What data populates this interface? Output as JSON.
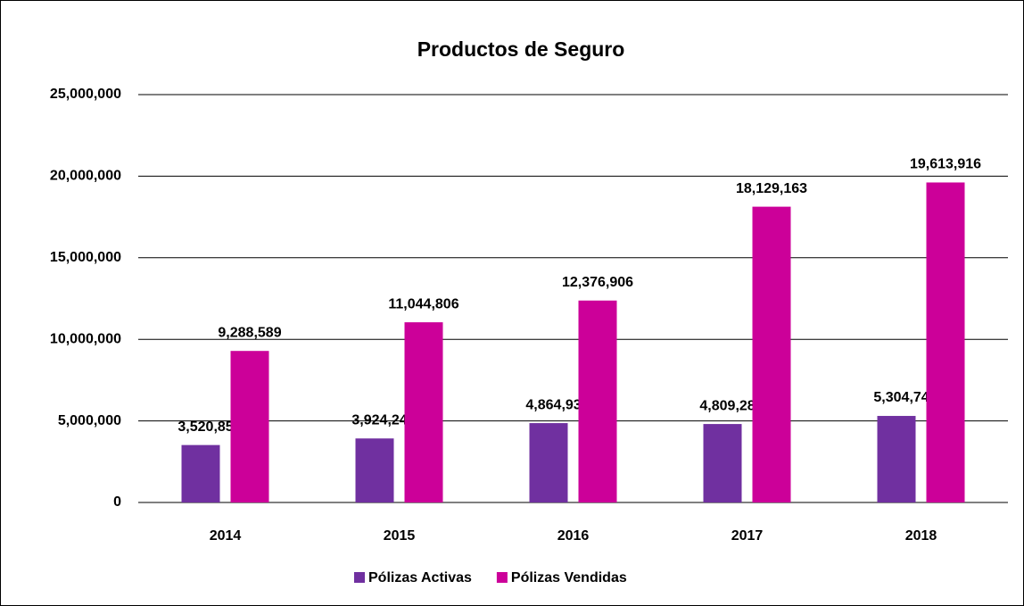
{
  "chart_data": {
    "type": "bar",
    "title": "Productos de Seguro",
    "categories": [
      "2014",
      "2015",
      "2016",
      "2017",
      "2018"
    ],
    "series": [
      {
        "name": "Pólizas Activas",
        "color": "#7030a0",
        "values": [
          3520850,
          3924241,
          4864934,
          4809280,
          5304741
        ],
        "value_labels": [
          "3,520,850",
          "3,924,241",
          "4,864,934",
          "4,809,280",
          "5,304,741"
        ]
      },
      {
        "name": "Pólizas Vendidas",
        "color": "#cc0099",
        "values": [
          9288589,
          11044806,
          12376906,
          18129163,
          19613916
        ],
        "value_labels": [
          "9,288,589",
          "11,044,806",
          "12,376,906",
          "18,129,163",
          "19,613,916"
        ]
      }
    ],
    "ylim": [
      0,
      25000000
    ],
    "yticks": [
      0,
      {
        "value": 5000000,
        "label": "5,000,000"
      },
      {
        "value": 10000000,
        "label": "10,000,000"
      },
      {
        "value": 15000000,
        "label": "15,000,000"
      },
      {
        "value": 20000000,
        "label": "20,000,000"
      },
      {
        "value": 25000000,
        "label": "25,000,000"
      }
    ],
    "grid": true,
    "legend": "bottom"
  }
}
